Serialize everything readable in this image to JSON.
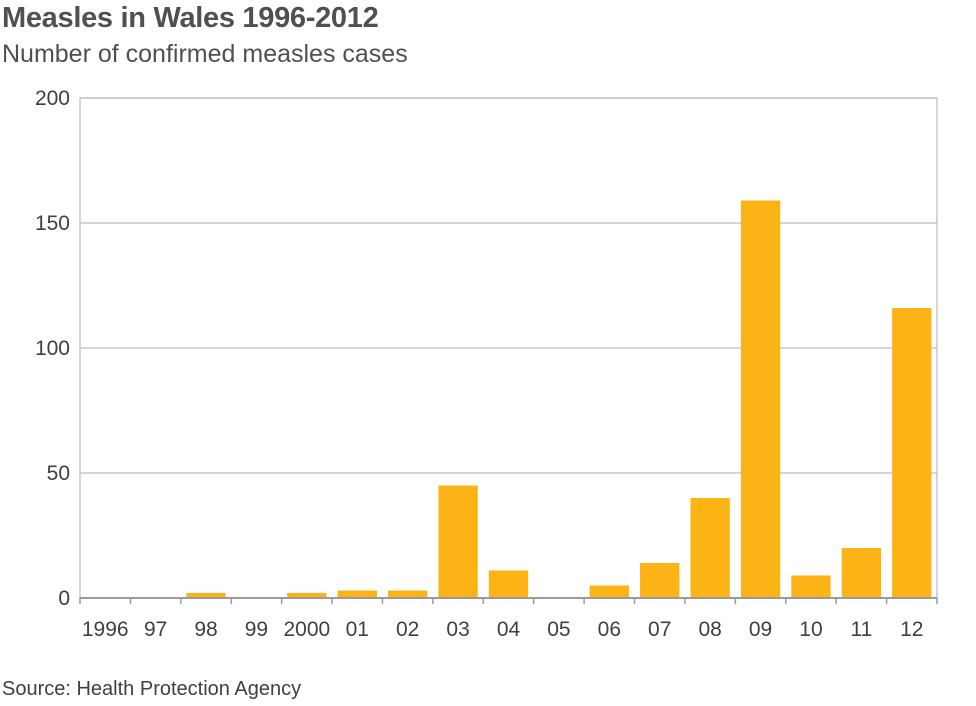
{
  "title": "Measles in Wales 1996-2012",
  "subtitle": "Number of confirmed measles cases",
  "source": "Source: Health Protection Agency",
  "colors": {
    "bar": "#fbb316",
    "grid": "#c8c8c8",
    "axis": "#9a9a9a"
  },
  "chart_data": {
    "type": "bar",
    "title": "Measles in Wales 1996-2012",
    "subtitle": "Number of confirmed measles cases",
    "categories": [
      "1996",
      "97",
      "98",
      "99",
      "2000",
      "01",
      "02",
      "03",
      "04",
      "05",
      "06",
      "07",
      "08",
      "09",
      "10",
      "11",
      "12"
    ],
    "values": [
      0,
      0,
      2,
      0,
      2,
      3,
      3,
      45,
      11,
      0,
      5,
      14,
      40,
      159,
      9,
      20,
      116
    ],
    "ylim": [
      0,
      200
    ],
    "yticks": [
      0,
      50,
      100,
      150,
      200
    ],
    "xlabel": "",
    "ylabel": "",
    "grid": true,
    "legend": "none"
  }
}
